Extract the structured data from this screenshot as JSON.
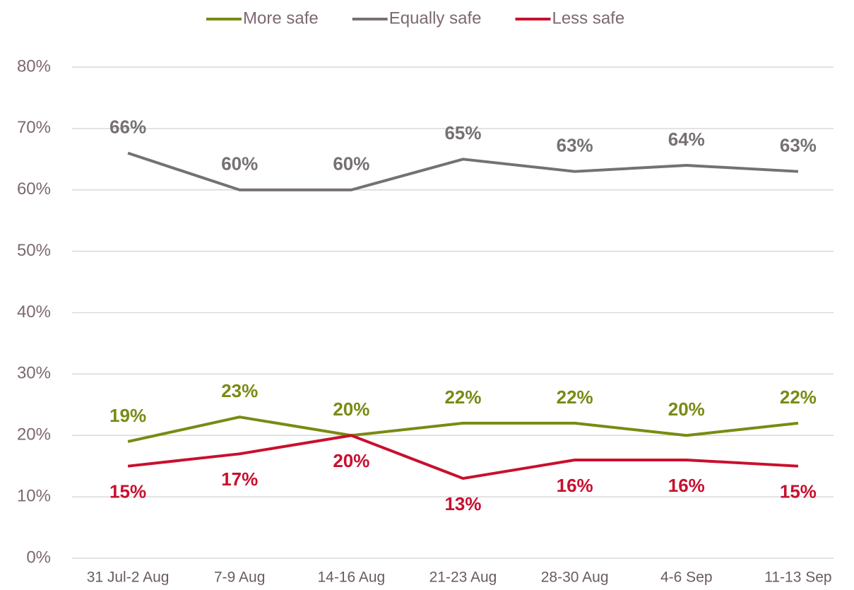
{
  "chart_data": {
    "type": "line",
    "categories": [
      "31 Jul-2 Aug",
      "7-9 Aug",
      "14-16 Aug",
      "21-23 Aug",
      "28-30 Aug",
      "4-6 Sep",
      "11-13 Sep"
    ],
    "series": [
      {
        "name": "More safe",
        "color": "#7a8a13",
        "values": [
          19,
          23,
          20,
          22,
          22,
          20,
          22
        ],
        "value_labels": [
          "19%",
          "23%",
          "20%",
          "22%",
          "22%",
          "20%",
          "22%"
        ]
      },
      {
        "name": "Equally safe",
        "color": "#767171",
        "values": [
          66,
          60,
          60,
          65,
          63,
          64,
          63
        ],
        "value_labels": [
          "66%",
          "60%",
          "60%",
          "65%",
          "63%",
          "64%",
          "63%"
        ]
      },
      {
        "name": "Less safe",
        "color": "#c8102e",
        "values": [
          15,
          17,
          20,
          13,
          16,
          16,
          15
        ],
        "value_labels": [
          "15%",
          "17%",
          "20%",
          "13%",
          "16%",
          "16%",
          "15%"
        ]
      }
    ],
    "ylim": [
      0,
      80
    ],
    "yticks": [
      {
        "value": 0,
        "label": "0%"
      },
      {
        "value": 10,
        "label": "10%"
      },
      {
        "value": 20,
        "label": "20%"
      },
      {
        "value": 30,
        "label": "30%"
      },
      {
        "value": 40,
        "label": "40%"
      },
      {
        "value": 50,
        "label": "50%"
      },
      {
        "value": 60,
        "label": "60%"
      },
      {
        "value": 70,
        "label": "70%"
      },
      {
        "value": 80,
        "label": "80%"
      }
    ],
    "grid": true,
    "legend": "top"
  }
}
